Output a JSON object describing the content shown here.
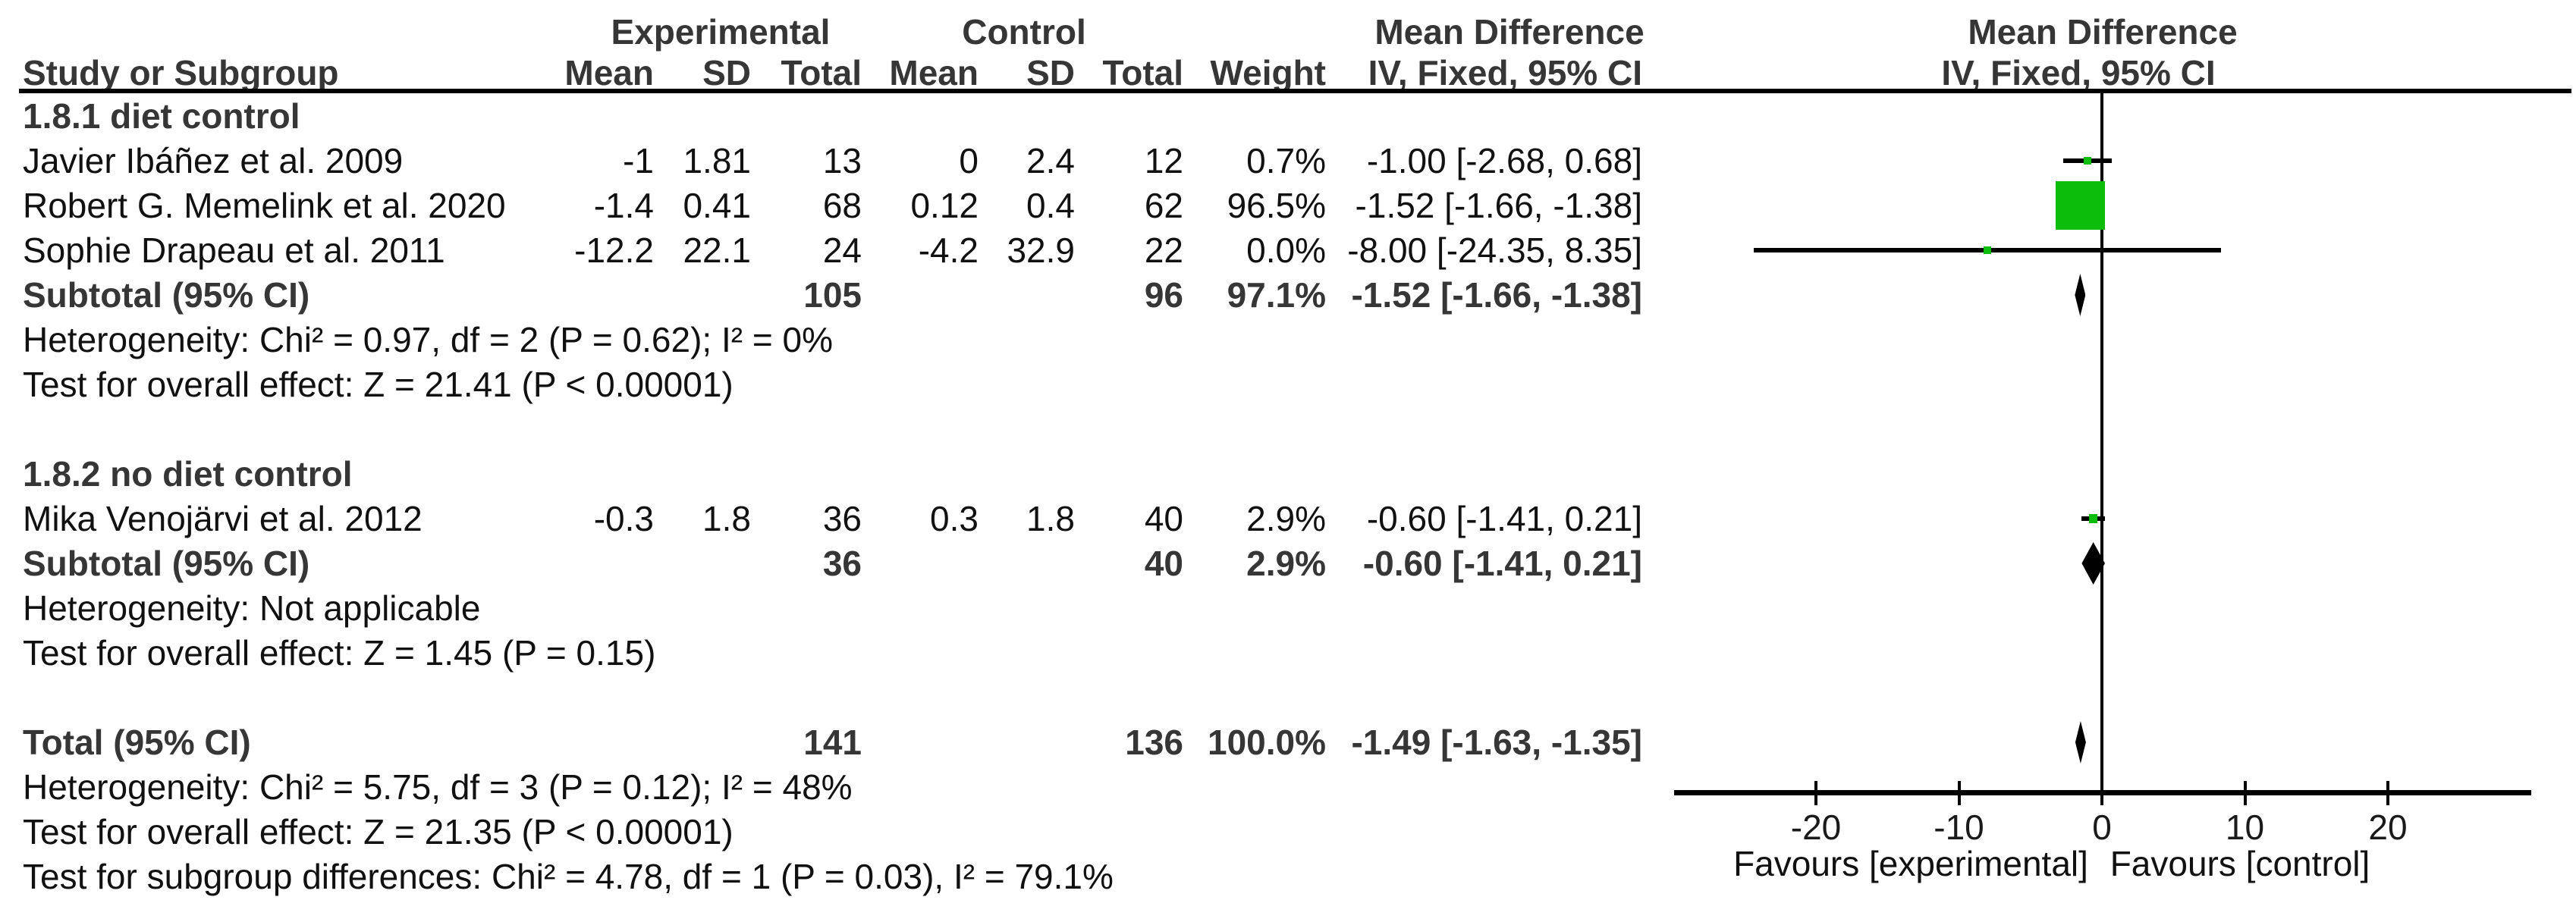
{
  "header": {
    "group_experimental": "Experimental",
    "group_control": "Control",
    "md_left": "Mean Difference",
    "md_right": "Mean Difference",
    "columns": {
      "study": "Study or Subgroup",
      "mean": "Mean",
      "sd": "SD",
      "total": "Total",
      "weight": "Weight",
      "ci": "IV, Fixed, 95% CI"
    }
  },
  "rows": [
    {
      "type": "subgroup",
      "label": "1.8.1 diet control"
    },
    {
      "type": "study",
      "label": "Javier Ibáñez et al. 2009",
      "mean_e": "-1",
      "sd_e": "1.81",
      "total_e": "13",
      "mean_c": "0",
      "sd_c": "2.4",
      "total_c": "12",
      "weight": "0.7%",
      "ci": "-1.00 [-2.68, 0.68]",
      "md": -1.0,
      "lo": -2.68,
      "hi": 0.68,
      "weight_val": 0.7
    },
    {
      "type": "study",
      "label": "Robert G. Memelink et al. 2020",
      "mean_e": "-1.4",
      "sd_e": "0.41",
      "total_e": "68",
      "mean_c": "0.12",
      "sd_c": "0.4",
      "total_c": "62",
      "weight": "96.5%",
      "ci": "-1.52 [-1.66, -1.38]",
      "md": -1.52,
      "lo": -1.66,
      "hi": -1.38,
      "weight_val": 96.5
    },
    {
      "type": "study",
      "label": "Sophie Drapeau et al. 2011",
      "mean_e": "-12.2",
      "sd_e": "22.1",
      "total_e": "24",
      "mean_c": "-4.2",
      "sd_c": "32.9",
      "total_c": "22",
      "weight": "0.0%",
      "ci": "-8.00 [-24.35, 8.35]",
      "md": -8.0,
      "lo": -24.35,
      "hi": 8.35,
      "weight_val": 0.0
    },
    {
      "type": "subtotal",
      "label": "Subtotal (95% CI)",
      "total_e": "105",
      "total_c": "96",
      "weight": "97.1%",
      "ci": "-1.52 [-1.66, -1.38]",
      "md": -1.52,
      "lo": -1.66,
      "hi": -1.38
    },
    {
      "type": "note",
      "label": "Heterogeneity: Chi² = 0.97, df = 2 (P = 0.62); I² = 0%"
    },
    {
      "type": "note",
      "label": "Test for overall effect: Z = 21.41 (P < 0.00001)"
    },
    {
      "type": "spacer",
      "label": ""
    },
    {
      "type": "subgroup",
      "label": "1.8.2 no diet control"
    },
    {
      "type": "study",
      "label": "Mika Venojärvi et al. 2012",
      "mean_e": "-0.3",
      "sd_e": "1.8",
      "total_e": "36",
      "mean_c": "0.3",
      "sd_c": "1.8",
      "total_c": "40",
      "weight": "2.9%",
      "ci": "-0.60 [-1.41, 0.21]",
      "md": -0.6,
      "lo": -1.41,
      "hi": 0.21,
      "weight_val": 2.9
    },
    {
      "type": "subtotal",
      "label": "Subtotal (95% CI)",
      "total_e": "36",
      "total_c": "40",
      "weight": "2.9%",
      "ci": "-0.60 [-1.41, 0.21]",
      "md": -0.6,
      "lo": -1.41,
      "hi": 0.21
    },
    {
      "type": "note",
      "label": "Heterogeneity: Not applicable"
    },
    {
      "type": "note",
      "label": "Test for overall effect: Z = 1.45 (P = 0.15)"
    },
    {
      "type": "spacer",
      "label": ""
    },
    {
      "type": "total",
      "label": "Total (95% CI)",
      "total_e": "141",
      "total_c": "136",
      "weight": "100.0%",
      "ci": "-1.49 [-1.63, -1.35]",
      "md": -1.49,
      "lo": -1.63,
      "hi": -1.35
    },
    {
      "type": "note",
      "label": "Heterogeneity: Chi² = 5.75, df = 3 (P = 0.12); I² = 48%"
    },
    {
      "type": "note",
      "label": "Test for overall effect: Z = 21.35 (P < 0.00001)"
    },
    {
      "type": "note",
      "label": "Test for subgroup differences: Chi² = 4.78, df = 1 (P = 0.03), I² = 79.1%"
    }
  ],
  "axis": {
    "tick_values": [
      -20,
      -10,
      0,
      10,
      20
    ],
    "tick_labels": [
      "-20",
      "-10",
      "0",
      "10",
      "20"
    ],
    "favours_left": "Favours [experimental]",
    "favours_right": "Favours [control]"
  },
  "colors": {
    "square": "#0CBD0C",
    "diamond": "#000000",
    "line": "#000000"
  },
  "chart_data": {
    "type": "forest",
    "title": "Mean Difference",
    "effect_model": "IV, Fixed, 95% CI",
    "x_axis": {
      "ticks": [
        -20,
        -10,
        0,
        10,
        20
      ],
      "range": [
        -30,
        30
      ],
      "label_left": "Favours [experimental]",
      "label_right": "Favours [control]"
    },
    "subgroups": [
      {
        "name": "1.8.1 diet control",
        "studies": [
          {
            "study": "Javier Ibáñez et al. 2009",
            "experimental": {
              "mean": -1,
              "sd": 1.81,
              "total": 13
            },
            "control": {
              "mean": 0,
              "sd": 2.4,
              "total": 12
            },
            "weight_pct": 0.7,
            "md": -1.0,
            "ci95": [
              -2.68,
              0.68
            ]
          },
          {
            "study": "Robert G. Memelink et al. 2020",
            "experimental": {
              "mean": -1.4,
              "sd": 0.41,
              "total": 68
            },
            "control": {
              "mean": 0.12,
              "sd": 0.4,
              "total": 62
            },
            "weight_pct": 96.5,
            "md": -1.52,
            "ci95": [
              -1.66,
              -1.38
            ]
          },
          {
            "study": "Sophie Drapeau et al. 2011",
            "experimental": {
              "mean": -12.2,
              "sd": 22.1,
              "total": 24
            },
            "control": {
              "mean": -4.2,
              "sd": 32.9,
              "total": 22
            },
            "weight_pct": 0.0,
            "md": -8.0,
            "ci95": [
              -24.35,
              8.35
            ]
          }
        ],
        "subtotal": {
          "total_experimental": 105,
          "total_control": 96,
          "weight_pct": 97.1,
          "md": -1.52,
          "ci95": [
            -1.66,
            -1.38
          ]
        },
        "heterogeneity": "Chi² = 0.97, df = 2 (P = 0.62); I² = 0%",
        "overall_effect": "Z = 21.41 (P < 0.00001)"
      },
      {
        "name": "1.8.2 no diet control",
        "studies": [
          {
            "study": "Mika Venojärvi et al. 2012",
            "experimental": {
              "mean": -0.3,
              "sd": 1.8,
              "total": 36
            },
            "control": {
              "mean": 0.3,
              "sd": 1.8,
              "total": 40
            },
            "weight_pct": 2.9,
            "md": -0.6,
            "ci95": [
              -1.41,
              0.21
            ]
          }
        ],
        "subtotal": {
          "total_experimental": 36,
          "total_control": 40,
          "weight_pct": 2.9,
          "md": -0.6,
          "ci95": [
            -1.41,
            0.21
          ]
        },
        "heterogeneity": "Not applicable",
        "overall_effect": "Z = 1.45 (P = 0.15)"
      }
    ],
    "total": {
      "total_experimental": 141,
      "total_control": 136,
      "weight_pct": 100.0,
      "md": -1.49,
      "ci95": [
        -1.63,
        -1.35
      ],
      "heterogeneity": "Chi² = 5.75, df = 3 (P = 0.12); I² = 48%",
      "overall_effect": "Z = 21.35 (P < 0.00001)",
      "subgroup_differences": "Chi² = 4.78, df = 1 (P = 0.03), I² = 79.1%"
    }
  }
}
